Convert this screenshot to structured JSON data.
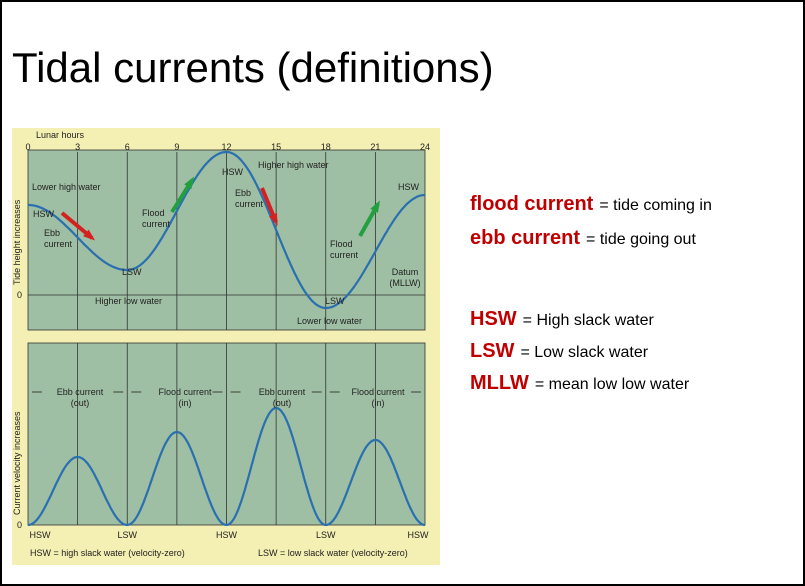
{
  "title": "Tidal currents (definitions)",
  "figure": {
    "x_axis_title": "Lunar hours",
    "hours": [
      "0",
      "3",
      "6",
      "9",
      "12",
      "15",
      "18",
      "21",
      "24"
    ],
    "tide_axis_title": "Tide height increases",
    "velocity_axis_title": "Current velocity increases",
    "tide_zero": "0",
    "velocity_zero": "0",
    "tide_labels": [
      [
        "Lower high water"
      ],
      [
        "HSW"
      ],
      [
        "Ebb",
        "current"
      ],
      [
        "Flood",
        "current"
      ],
      [
        "LSW"
      ],
      [
        "HSW"
      ],
      [
        "Higher high water"
      ],
      [
        "Ebb",
        "current"
      ],
      [
        "Flood",
        "current"
      ],
      [
        "LSW"
      ],
      [
        "Lower low water"
      ],
      [
        "Higher low water"
      ],
      [
        "HSW"
      ],
      [
        "Datum",
        "(MLLW)"
      ]
    ],
    "phase_labels": [
      [
        "Ebb current",
        "(out)"
      ],
      [
        "Flood current",
        "(in)"
      ],
      [
        "Ebb current",
        "(out)"
      ],
      [
        "Flood current",
        "(in)"
      ]
    ],
    "slack_labels": [
      "HSW",
      "LSW",
      "HSW",
      "LSW",
      "HSW"
    ],
    "captions": [
      "HSW = high slack water (velocity-zero)",
      "LSW = low slack water (velocity-zero)"
    ]
  },
  "definitions": [
    {
      "term": "flood current",
      "text": "= tide coming in"
    },
    {
      "term": "ebb current",
      "text": "= tide going out"
    },
    {
      "term": "HSW",
      "text": "= High slack water"
    },
    {
      "term": "LSW",
      "text": "= Low slack water"
    },
    {
      "term": "MLLW",
      "text": "= mean low low water"
    }
  ]
}
